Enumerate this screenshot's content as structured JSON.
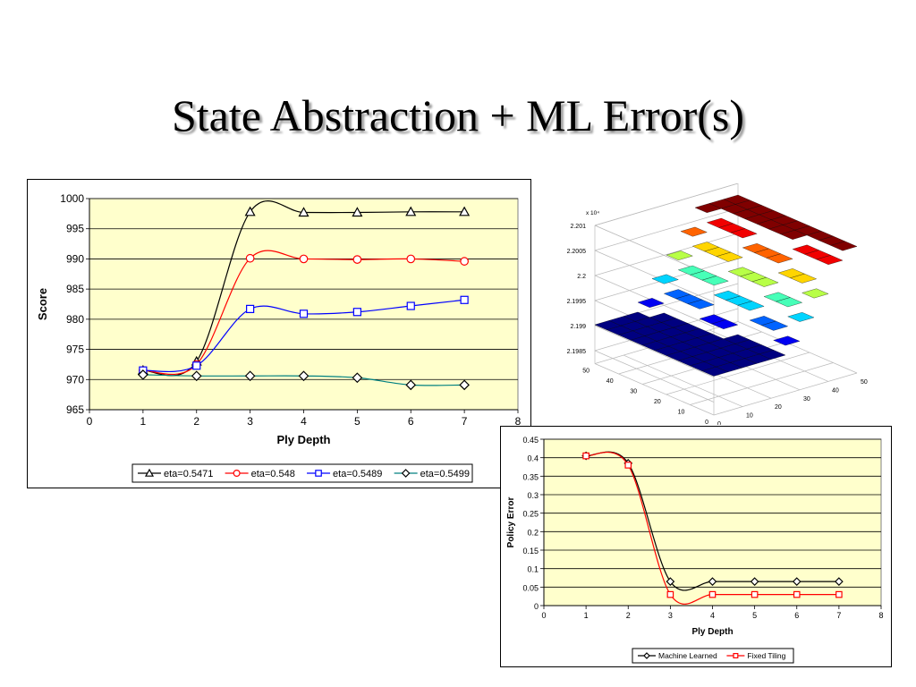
{
  "slide": {
    "title": "State Abstraction + ML Error(s)"
  },
  "chart_data": [
    {
      "type": "line",
      "xlabel": "Ply Depth",
      "ylabel": "Score",
      "xlim": [
        0,
        8
      ],
      "ylim": [
        965,
        1000
      ],
      "x_ticks": [
        0,
        1,
        2,
        3,
        4,
        5,
        6,
        7,
        8
      ],
      "y_ticks": [
        965,
        970,
        975,
        980,
        985,
        990,
        995,
        1000
      ],
      "grid": true,
      "legend_position": "bottom",
      "plot_background": "#ffffcc",
      "series": [
        {
          "name": "eta=0.5471",
          "color": "#000000",
          "marker": "triangle",
          "x": [
            1,
            2,
            3,
            4,
            5,
            6,
            7
          ],
          "values": [
            971.5,
            973.0,
            997.8,
            997.7,
            997.7,
            997.8,
            997.8
          ]
        },
        {
          "name": "eta=0.548",
          "color": "#ff0000",
          "marker": "circle",
          "x": [
            1,
            2,
            3,
            4,
            5,
            6,
            7
          ],
          "values": [
            971.5,
            972.5,
            990.1,
            990.0,
            989.9,
            990.0,
            989.6
          ]
        },
        {
          "name": "eta=0.5489",
          "color": "#0000ff",
          "marker": "square",
          "x": [
            1,
            2,
            3,
            4,
            5,
            6,
            7
          ],
          "values": [
            971.5,
            972.3,
            981.7,
            980.9,
            981.2,
            982.2,
            983.2
          ]
        },
        {
          "name": "eta=0.5499",
          "color": "#008080",
          "marker": "diamond",
          "x": [
            1,
            2,
            3,
            4,
            5,
            6,
            7
          ],
          "values": [
            970.8,
            970.6,
            970.6,
            970.6,
            970.3,
            969.1,
            969.1
          ]
        }
      ]
    },
    {
      "type": "surface3d",
      "exponent_label": "x 10⁴",
      "z_ticks": [
        "2.201",
        "2.2005",
        "2.2",
        "2.1995",
        "2.199",
        "2.1985"
      ],
      "x_ticks": [
        "0",
        "10",
        "20",
        "30",
        "40",
        "50"
      ],
      "y_ticks": [
        "0",
        "10",
        "20",
        "30",
        "40",
        "50"
      ],
      "colormap": "jet"
    },
    {
      "type": "line",
      "xlabel": "Ply Depth",
      "ylabel": "Policy Error",
      "xlim": [
        0,
        8
      ],
      "ylim": [
        0,
        0.45
      ],
      "x_ticks": [
        0,
        1,
        2,
        3,
        4,
        5,
        6,
        7,
        8
      ],
      "y_ticks": [
        0,
        0.05,
        0.1,
        0.15,
        0.2,
        0.25,
        0.3,
        0.35,
        0.4,
        0.45
      ],
      "grid": true,
      "legend_position": "bottom",
      "plot_background": "#ffffcc",
      "series": [
        {
          "name": "Machine Learned",
          "color": "#000000",
          "marker": "diamond",
          "x": [
            1,
            2,
            3,
            4,
            5,
            6,
            7
          ],
          "values": [
            0.405,
            0.385,
            0.065,
            0.065,
            0.065,
            0.065,
            0.065
          ]
        },
        {
          "name": "Fixed Tiling",
          "color": "#ff0000",
          "marker": "square",
          "x": [
            1,
            2,
            3,
            4,
            5,
            6,
            7
          ],
          "values": [
            0.405,
            0.38,
            0.03,
            0.03,
            0.03,
            0.03,
            0.03
          ]
        }
      ]
    }
  ]
}
